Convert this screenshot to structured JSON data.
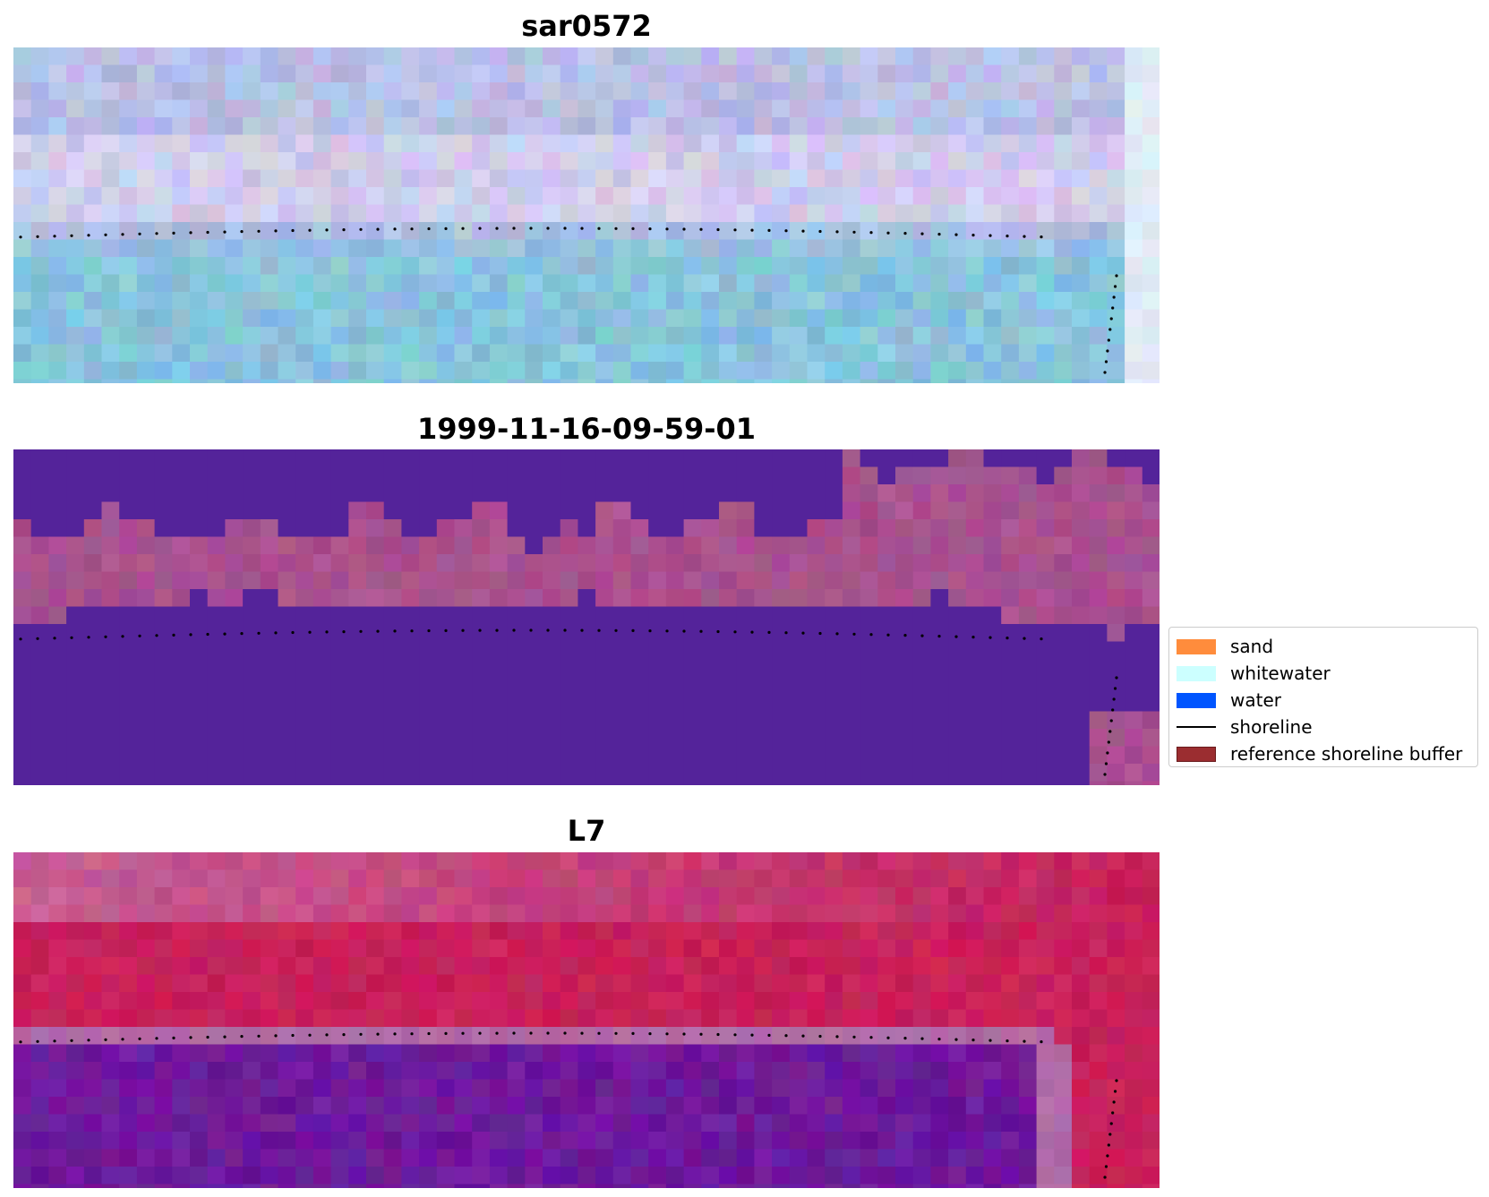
{
  "panels": [
    {
      "title": "sar0572",
      "style": "rgb"
    },
    {
      "title": "1999-11-16-09-59-01",
      "style": "classified"
    },
    {
      "title": "L7",
      "style": "index"
    }
  ],
  "legend": {
    "items": [
      {
        "label": "sand",
        "color": "#ff8c3c",
        "type": "patch"
      },
      {
        "label": "whitewater",
        "color": "#ccffff",
        "type": "patch"
      },
      {
        "label": "water",
        "color": "#0055ff",
        "type": "patch"
      },
      {
        "label": "shoreline",
        "color": "#000000",
        "type": "line"
      },
      {
        "label": "reference shoreline buffer",
        "color": "#9b2d30",
        "type": "patch",
        "edge": "#6a1a1c"
      }
    ]
  },
  "colors": {
    "panel1_sky": "#b8bfe6",
    "panel1_water": "#88c4dc",
    "panel2_water": "#54239a",
    "panel2_land": "#a8508f",
    "panel3_sand": "#c8205a",
    "panel3_water": "#6e1a9c",
    "panel3_buffer": "#b06aa6",
    "shoreline_dots": "#000000"
  }
}
